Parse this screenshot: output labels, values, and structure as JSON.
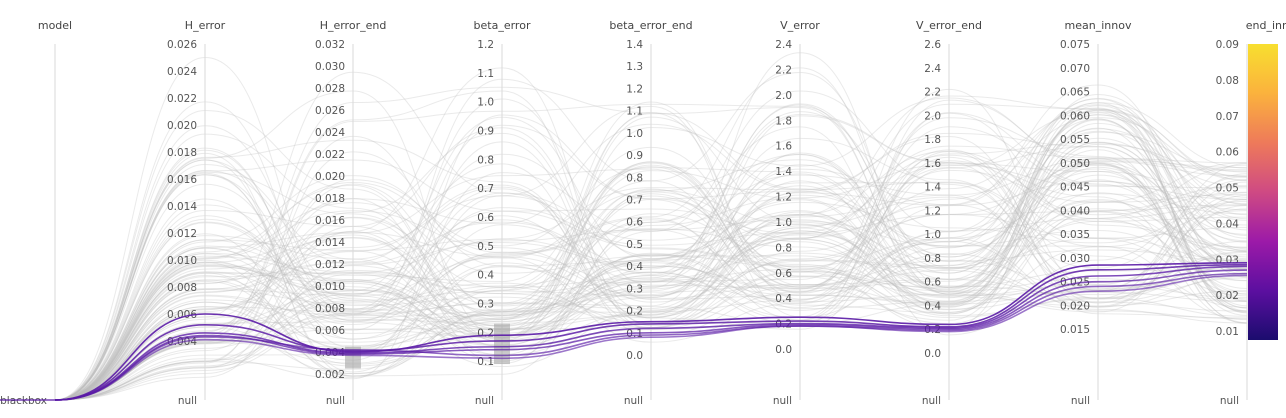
{
  "chart_data": {
    "type": "parallel_coordinates",
    "axes": [
      {
        "key": "model",
        "label": "model",
        "categorical": true,
        "categories": [
          "blackbox"
        ]
      },
      {
        "key": "H_error",
        "label": "H_error",
        "min": 0.0,
        "max": 0.026,
        "ticks": [
          "0.004",
          "0.006",
          "0.008",
          "0.010",
          "0.012",
          "0.014",
          "0.016",
          "0.018",
          "0.020",
          "0.022",
          "0.024",
          "0.026"
        ],
        "null_label": "null"
      },
      {
        "key": "H_error_end",
        "label": "H_error_end",
        "min": 0.0,
        "max": 0.032,
        "ticks": [
          "0.002",
          "0.004",
          "0.006",
          "0.008",
          "0.010",
          "0.012",
          "0.014",
          "0.016",
          "0.018",
          "0.020",
          "0.022",
          "0.024",
          "0.026",
          "0.028",
          "0.030",
          "0.032"
        ],
        "null_label": "null",
        "brush": [
          0.0025,
          0.0045
        ]
      },
      {
        "key": "beta_error",
        "label": "beta_error",
        "min": 0.0,
        "max": 1.2,
        "ticks": [
          "0.1",
          "0.2",
          "0.3",
          "0.4",
          "0.5",
          "0.6",
          "0.7",
          "0.8",
          "0.9",
          "1.0",
          "1.1",
          "1.2"
        ],
        "null_label": "null",
        "brush": [
          0.09,
          0.23
        ]
      },
      {
        "key": "beta_error_end",
        "label": "beta_error_end",
        "min": 0.0,
        "max": 1.4,
        "ticks": [
          "0.0",
          "0.1",
          "0.2",
          "0.3",
          "0.4",
          "0.5",
          "0.6",
          "0.7",
          "0.8",
          "0.9",
          "1.0",
          "1.1",
          "1.2",
          "1.3",
          "1.4"
        ],
        "null_label": "null"
      },
      {
        "key": "V_error",
        "label": "V_error",
        "min": 0.0,
        "max": 2.4,
        "ticks": [
          "0.0",
          "0.2",
          "0.4",
          "0.6",
          "0.8",
          "1.0",
          "1.2",
          "1.4",
          "1.6",
          "1.8",
          "2.0",
          "2.2",
          "2.4"
        ],
        "null_label": "null"
      },
      {
        "key": "V_error_end",
        "label": "V_error_end",
        "min": 0.0,
        "max": 2.6,
        "ticks": [
          "0.0",
          "0.2",
          "0.4",
          "0.6",
          "0.8",
          "1.0",
          "1.2",
          "1.4",
          "1.6",
          "1.8",
          "2.0",
          "2.2",
          "2.4",
          "2.6"
        ],
        "null_label": "null"
      },
      {
        "key": "mean_innov",
        "label": "mean_innov",
        "min": 0.01,
        "max": 0.075,
        "ticks": [
          "0.015",
          "0.020",
          "0.025",
          "0.030",
          "0.035",
          "0.040",
          "0.045",
          "0.050",
          "0.055",
          "0.060",
          "0.065",
          "0.070",
          "0.075"
        ],
        "null_label": "null"
      },
      {
        "key": "end_innov",
        "label": "end_innov",
        "min": 0.0075,
        "max": 0.09,
        "ticks": [
          "0.01",
          "0.02",
          "0.03",
          "0.04",
          "0.05",
          "0.06",
          "0.07",
          "0.08",
          "0.09"
        ],
        "null_label": "null",
        "colorbar": true
      }
    ],
    "colorscale": [
      "#1b0c6e",
      "#5c0fa0",
      "#9c1aa8",
      "#cf4a83",
      "#ee7a5a",
      "#fbb23d",
      "#f8df2f"
    ],
    "highlight_color": "#5a1aa6",
    "background_line_count": 120,
    "highlighted_runs": [
      {
        "H_error": 0.006,
        "H_error_end": 0.004,
        "beta_error": 0.19,
        "beta_error_end": 0.15,
        "V_error": 0.25,
        "V_error_end": 0.24,
        "mean_innov": 0.0285,
        "end_innov": 0.029
      },
      {
        "H_error": 0.0052,
        "H_error_end": 0.0041,
        "beta_error": 0.17,
        "beta_error_end": 0.14,
        "V_error": 0.22,
        "V_error_end": 0.22,
        "mean_innov": 0.0275,
        "end_innov": 0.0285
      },
      {
        "H_error": 0.0046,
        "H_error_end": 0.0039,
        "beta_error": 0.15,
        "beta_error_end": 0.12,
        "V_error": 0.2,
        "V_error_end": 0.21,
        "mean_innov": 0.0262,
        "end_innov": 0.028
      },
      {
        "H_error": 0.0044,
        "H_error_end": 0.0038,
        "beta_error": 0.14,
        "beta_error_end": 0.1,
        "V_error": 0.19,
        "V_error_end": 0.2,
        "mean_innov": 0.025,
        "end_innov": 0.027
      },
      {
        "H_error": 0.0043,
        "H_error_end": 0.0042,
        "beta_error": 0.12,
        "beta_error_end": 0.09,
        "V_error": 0.18,
        "V_error_end": 0.19,
        "mean_innov": 0.024,
        "end_innov": 0.026
      },
      {
        "H_error": 0.0041,
        "H_error_end": 0.0037,
        "beta_error": 0.11,
        "beta_error_end": 0.08,
        "V_error": 0.18,
        "V_error_end": 0.18,
        "mean_innov": 0.023,
        "end_innov": 0.0255
      }
    ]
  }
}
